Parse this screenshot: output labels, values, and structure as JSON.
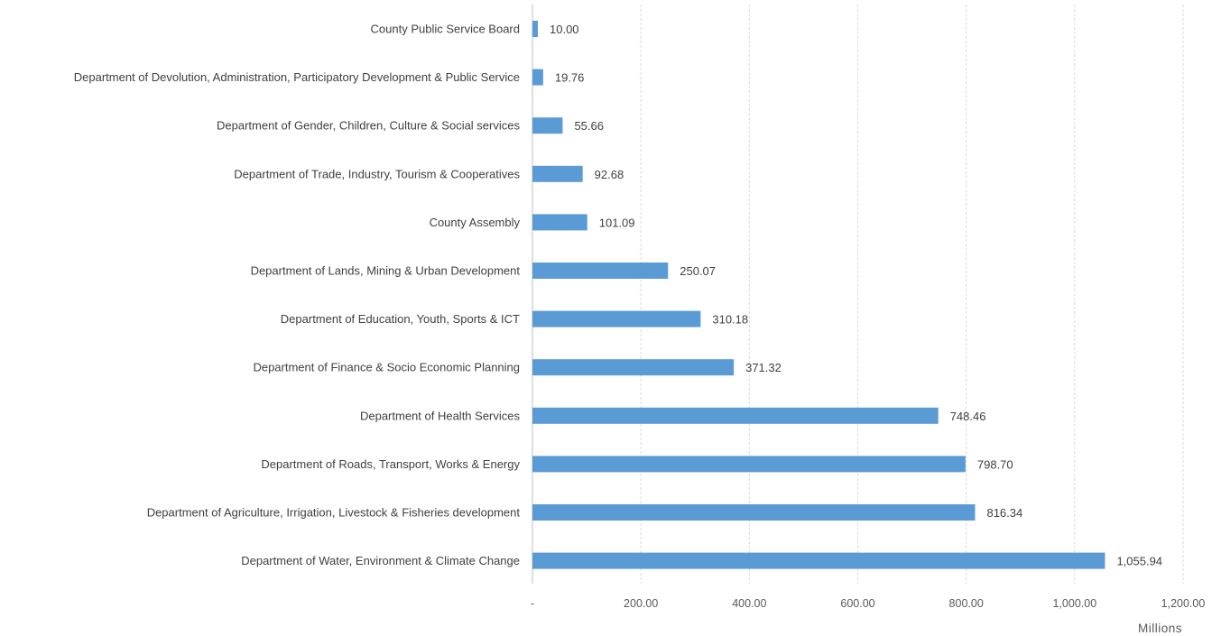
{
  "chart_data": {
    "type": "bar",
    "orientation": "horizontal",
    "categories": [
      "County Public Service Board",
      "Department of Devolution, Administration, Participatory Development  & Public Service",
      "Department of  Gender, Children, Culture  & Social services",
      "Department of Trade, Industry, Tourism & Cooperatives",
      "County Assembly",
      "Department of Lands, Mining & Urban Development",
      "Department of Education, Youth, Sports & ICT",
      "Department of Finance & Socio Economic Planning",
      "Department of Health Services",
      "Department of Roads, Transport, Works & Energy",
      "Department of Agriculture, Irrigation, Livestock & Fisheries development",
      "Department of Water, Environment & Climate Change"
    ],
    "values": [
      10.0,
      19.76,
      55.66,
      92.68,
      101.09,
      250.07,
      310.18,
      371.32,
      748.46,
      798.7,
      816.34,
      1055.94
    ],
    "value_labels": [
      "10.00",
      "19.76",
      "55.66",
      "92.68",
      "101.09",
      "250.07",
      "310.18",
      "371.32",
      "748.46",
      "798.70",
      "816.34",
      "1,055.94"
    ],
    "xlim": [
      0,
      1200
    ],
    "x_ticks": [
      0,
      200,
      400,
      600,
      800,
      1000,
      1200
    ],
    "x_tick_labels": [
      "-",
      "200.00",
      "400.00",
      "600.00",
      "800.00",
      "1,000.00",
      "1,200.00"
    ],
    "x_unit_label": "Millions",
    "title": "",
    "xlabel": "",
    "ylabel": "",
    "grid": true,
    "bar_color": "#5b9bd5",
    "legend": "none"
  }
}
